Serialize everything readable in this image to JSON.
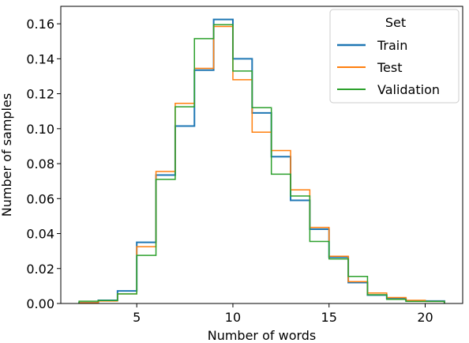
{
  "chart_data": {
    "type": "line",
    "subtype": "step-histogram",
    "xlabel": "Number of words",
    "ylabel": "Number of samples",
    "xlim": [
      1.05,
      21.95
    ],
    "ylim": [
      0,
      0.17
    ],
    "xticks": [
      5,
      10,
      15,
      20
    ],
    "yticks": [
      0.0,
      0.02,
      0.04,
      0.06,
      0.08,
      0.1,
      0.12,
      0.14,
      0.16
    ],
    "bin_edges": [
      2,
      3,
      4,
      5,
      6,
      7,
      8,
      9,
      10,
      11,
      12,
      13,
      14,
      15,
      16,
      17,
      18,
      19,
      20,
      21
    ],
    "legend": {
      "title": "Set",
      "position": "top-right"
    },
    "series": [
      {
        "name": "Train",
        "color": "#1f77b4",
        "values": [
          0.0004,
          0.0018,
          0.0072,
          0.035,
          0.0735,
          0.1015,
          0.1335,
          0.1625,
          0.14,
          0.109,
          0.084,
          0.059,
          0.0425,
          0.0265,
          0.012,
          0.0048,
          0.0028,
          0.0016,
          0.0014
        ]
      },
      {
        "name": "Test",
        "color": "#ff7f0e",
        "values": [
          0.0004,
          0.0014,
          0.0055,
          0.0325,
          0.0755,
          0.1145,
          0.1345,
          0.1585,
          0.128,
          0.098,
          0.0875,
          0.065,
          0.0435,
          0.027,
          0.0125,
          0.006,
          0.0034,
          0.0018,
          0.0012
        ]
      },
      {
        "name": "Validation",
        "color": "#2ca02c",
        "values": [
          0.0013,
          0.0017,
          0.0055,
          0.0275,
          0.071,
          0.1125,
          0.1515,
          0.1595,
          0.133,
          0.112,
          0.074,
          0.0615,
          0.0355,
          0.0255,
          0.0155,
          0.005,
          0.0024,
          0.0012,
          0.0012
        ]
      }
    ]
  }
}
